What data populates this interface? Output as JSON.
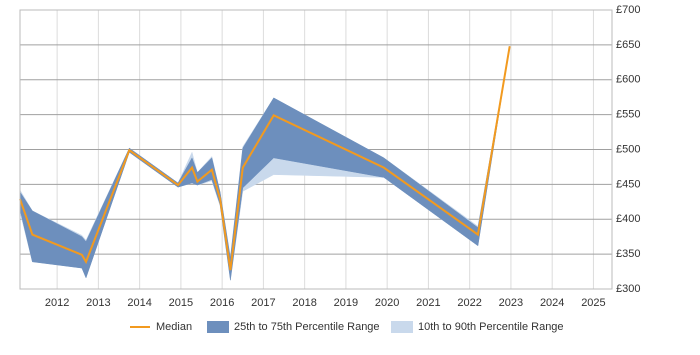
{
  "chart_data": {
    "type": "line",
    "x": [
      2011.1,
      2011.4,
      2012.6,
      2012.7,
      2013.75,
      2014.93,
      2015.27,
      2015.4,
      2015.75,
      2015.95,
      2016.2,
      2016.5,
      2017.25,
      2019.92,
      2022.2,
      2022.97
    ],
    "series": [
      {
        "name": "10th to 90th Percentile Range",
        "color": "#c9d9ec",
        "band": true,
        "high": [
          442,
          412,
          377,
          370,
          502,
          452,
          496,
          467,
          490,
          439,
          346,
          504,
          574,
          488,
          390,
          648
        ],
        "low": [
          410,
          339,
          330,
          316,
          496,
          446,
          452,
          449,
          455,
          419,
          312,
          440,
          464,
          460,
          362,
          648
        ]
      },
      {
        "name": "25th to 75th Percentile Range",
        "color": "#6d8fbd",
        "band": true,
        "high": [
          439,
          412,
          375,
          368,
          502,
          452,
          488,
          467,
          488,
          439,
          344,
          502,
          574,
          488,
          388,
          648
        ],
        "low": [
          414,
          339,
          330,
          316,
          496,
          446,
          452,
          449,
          457,
          421,
          313,
          445,
          488,
          460,
          362,
          648
        ]
      },
      {
        "name": "Median",
        "color": "#f29a1f",
        "values": [
          429,
          378,
          349,
          339,
          499,
          449,
          474,
          454,
          471,
          429,
          327,
          474,
          549,
          474,
          378,
          648
        ]
      }
    ],
    "legend_order": [
      2,
      1,
      0
    ],
    "xlim": [
      2011.1,
      2025.45
    ],
    "xticks": [
      2012,
      2013,
      2014,
      2015,
      2016,
      2017,
      2018,
      2019,
      2020,
      2021,
      2022,
      2023,
      2024,
      2025
    ],
    "ylim": [
      300,
      700
    ],
    "yticks": [
      {
        "value": 300,
        "label": "£300"
      },
      {
        "value": 350,
        "label": "£350"
      },
      {
        "value": 400,
        "label": "£400"
      },
      {
        "value": 450,
        "label": "£450"
      },
      {
        "value": 500,
        "label": "£500"
      },
      {
        "value": 550,
        "label": "£550"
      },
      {
        "value": 600,
        "label": "£600"
      },
      {
        "value": 650,
        "label": "£650"
      },
      {
        "value": 700,
        "label": "£700"
      }
    ],
    "grid": true
  }
}
